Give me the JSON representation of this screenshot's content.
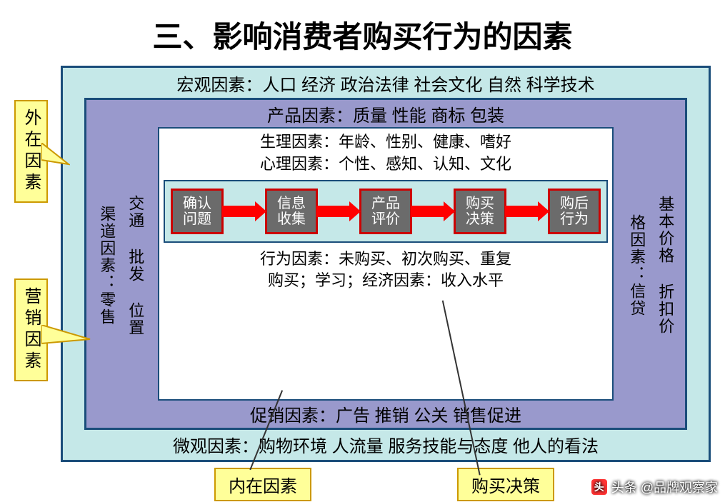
{
  "title": "三、影响消费者购买行为的因素",
  "colors": {
    "outer_border": "#1a4d7a",
    "outer_bg": "#c5e8e8",
    "purple_bg": "#9999cc",
    "white_bg": "#ffffff",
    "step_border": "#cc0000",
    "step_bg": "#6b6b6b",
    "step_text": "#ffffff",
    "arrow": "#ff0000",
    "callout_border": "#cc9900",
    "callout_bg": "#ffff99"
  },
  "macro_top": "宏观因素：人口 经济 政治法律 社会文化 自然 科学技术",
  "micro_bottom": "微观因素：购物环境 人流量 服务技能与态度 他人的看法",
  "product_top": "产品因素：质量 性能 商标 包装",
  "promo_bottom": "促销因素：广告 推销 公关 销售促进",
  "left_cols": {
    "col1": "渠道因素：零售",
    "col2": "交通 批发 位置"
  },
  "right_cols": {
    "col1": "格因素：信贷",
    "col2": "基本价格 折扣价"
  },
  "physio_line1": "生理因素：年龄、性别、健康、嗜好",
  "physio_line2": "心理因素：个性、感知、认知、文化",
  "process": {
    "steps": [
      "确认\n问题",
      "信息\n收集",
      "产品\n评价",
      "购买\n决策",
      "购后\n行为"
    ]
  },
  "behavior_line1": "行为因素：未购买、初次购买、重复",
  "behavior_line2": "购买；学习；经济因素：收入水平",
  "callouts": {
    "external": "外在因素",
    "marketing": "营销因素"
  },
  "bottom_labels": {
    "internal": "内在因素",
    "decision": "购买决策"
  },
  "attribution": "头条 @品牌观察家"
}
